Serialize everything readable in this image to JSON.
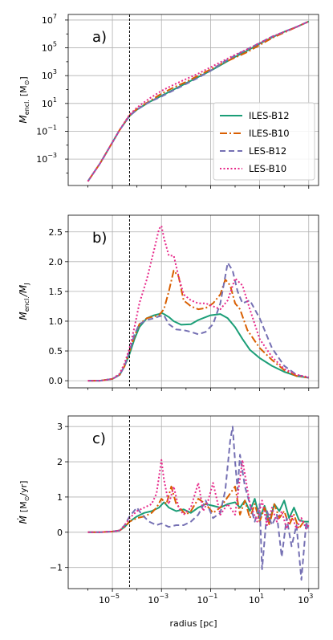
{
  "figure": {
    "xlabel": "radius [pc]",
    "vline_x_exp": -4.3
  },
  "legend": {
    "entries": [
      {
        "label": "ILES-B12",
        "color": "#1b9e77",
        "dash": ""
      },
      {
        "label": "ILES-B10",
        "color": "#d95f02",
        "dash": "9 3 2 3"
      },
      {
        "label": "LES-B12",
        "color": "#7570b3",
        "dash": "7 4"
      },
      {
        "label": "LES-B10",
        "color": "#e7298a",
        "dash": "2 2.5"
      }
    ]
  },
  "chart_data": [
    {
      "panel": "a)",
      "type": "line",
      "ylabel_main": "M",
      "ylabel_sub": "encl.",
      "ylabel_unit": "[M",
      "ylabel_unit_sym": "⊙",
      "ylabel_unit_end": "]",
      "xscale": "log",
      "yscale": "log",
      "xlim": [
        -6.8,
        3.4
      ],
      "ylim": [
        -4.9,
        7.4
      ],
      "xtick_labels": [],
      "ytick_exps": [
        -3,
        -1,
        1,
        3,
        5,
        7
      ],
      "ytick_labels": [
        "-3",
        "-1",
        "1",
        "3",
        "5",
        "7"
      ],
      "series": [
        {
          "name": "ILES-B12",
          "x_exp": [
            -6,
            -5.5,
            -5,
            -4.7,
            -4.3,
            -4,
            -3.5,
            -3,
            -2.5,
            -2,
            -1.5,
            -1,
            -0.5,
            0,
            0.5,
            1,
            1.5,
            2,
            2.5,
            3
          ],
          "y_exp": [
            -4.6,
            -3.3,
            -1.8,
            -0.9,
            0.1,
            0.55,
            1.1,
            1.55,
            2,
            2.45,
            2.9,
            3.35,
            3.85,
            4.35,
            4.8,
            5.3,
            5.75,
            6.15,
            6.5,
            6.9
          ]
        },
        {
          "name": "ILES-B10",
          "x_exp": [
            -6,
            -5.5,
            -5,
            -4.7,
            -4.3,
            -4,
            -3.5,
            -3,
            -2.5,
            -2,
            -1.5,
            -1,
            -0.5,
            0,
            0.5,
            1,
            1.5,
            2,
            2.5,
            3
          ],
          "y_exp": [
            -4.6,
            -3.3,
            -1.8,
            -0.9,
            0.15,
            0.6,
            1.15,
            1.7,
            2.15,
            2.55,
            3,
            3.45,
            3.9,
            4.3,
            4.7,
            5.2,
            5.7,
            6.1,
            6.5,
            6.9
          ]
        },
        {
          "name": "LES-B12",
          "x_exp": [
            -6,
            -5.5,
            -5,
            -4.7,
            -4.3,
            -4,
            -3.5,
            -3,
            -2.5,
            -2,
            -1.5,
            -1,
            -0.5,
            0,
            0.5,
            1,
            1.5,
            2,
            2.5,
            3
          ],
          "y_exp": [
            -4.6,
            -3.3,
            -1.8,
            -0.9,
            0.1,
            0.55,
            1.1,
            1.5,
            1.95,
            2.4,
            2.85,
            3.35,
            3.95,
            4.45,
            4.9,
            5.35,
            5.8,
            6.15,
            6.5,
            6.9
          ]
        },
        {
          "name": "LES-B10",
          "x_exp": [
            -6,
            -5.5,
            -5,
            -4.7,
            -4.3,
            -4,
            -3.5,
            -3,
            -2.5,
            -2,
            -1.5,
            -1,
            -0.5,
            0,
            0.5,
            1,
            1.5,
            2,
            2.5,
            3
          ],
          "y_exp": [
            -4.6,
            -3.3,
            -1.8,
            -0.9,
            0.2,
            0.7,
            1.35,
            1.9,
            2.35,
            2.75,
            3.15,
            3.6,
            4.05,
            4.5,
            4.9,
            5.35,
            5.8,
            6.15,
            6.5,
            6.9
          ]
        }
      ]
    },
    {
      "panel": "b)",
      "type": "line",
      "ylabel_main": "M",
      "ylabel_sub": "encl.",
      "ylabel_over": "/M",
      "ylabel_over_sub": "J",
      "xscale": "log",
      "yscale": "linear",
      "xlim": [
        -6.8,
        3.4
      ],
      "ylim": [
        -0.12,
        2.78
      ],
      "xtick_labels": [],
      "yticks": [
        0.0,
        0.5,
        1.0,
        1.5,
        2.0,
        2.5
      ],
      "ytick_labels": [
        "0.0",
        "0.5",
        "1.0",
        "1.5",
        "2.0",
        "2.5"
      ],
      "series": [
        {
          "name": "ILES-B12",
          "x_exp": [
            -6,
            -5.5,
            -5,
            -4.7,
            -4.5,
            -4.3,
            -4.1,
            -3.9,
            -3.6,
            -3.3,
            -3.1,
            -3,
            -2.9,
            -2.7,
            -2.5,
            -2.2,
            -1.8,
            -1.5,
            -1,
            -0.6,
            -0.3,
            0,
            0.3,
            0.6,
            1,
            1.5,
            2,
            2.5,
            3
          ],
          "y": [
            0,
            0,
            0.03,
            0.1,
            0.25,
            0.45,
            0.7,
            0.9,
            1.05,
            1.1,
            1.12,
            1.14,
            1.12,
            1.07,
            1.0,
            0.94,
            0.95,
            1.02,
            1.1,
            1.12,
            1.05,
            0.9,
            0.7,
            0.52,
            0.38,
            0.25,
            0.15,
            0.08,
            0.05
          ]
        },
        {
          "name": "ILES-B10",
          "x_exp": [
            -6,
            -5.5,
            -5,
            -4.7,
            -4.5,
            -4.3,
            -4.1,
            -3.9,
            -3.6,
            -3.3,
            -3.1,
            -2.9,
            -2.7,
            -2.5,
            -2.3,
            -2.1,
            -1.8,
            -1.5,
            -1.2,
            -0.9,
            -0.6,
            -0.4,
            -0.2,
            0,
            0.2,
            0.5,
            1,
            1.5,
            2,
            2.5,
            3
          ],
          "y": [
            0,
            0,
            0.03,
            0.1,
            0.25,
            0.5,
            0.75,
            0.95,
            1.05,
            1.08,
            1.1,
            1.2,
            1.5,
            1.85,
            1.75,
            1.35,
            1.25,
            1.2,
            1.22,
            1.3,
            1.45,
            1.7,
            1.6,
            1.3,
            1.2,
            0.85,
            0.55,
            0.35,
            0.18,
            0.08,
            0.05
          ]
        },
        {
          "name": "LES-B12",
          "x_exp": [
            -6,
            -5.5,
            -5,
            -4.7,
            -4.5,
            -4.3,
            -4.1,
            -3.9,
            -3.6,
            -3.3,
            -3.1,
            -2.9,
            -2.7,
            -2.4,
            -2.1,
            -1.8,
            -1.5,
            -1.2,
            -0.9,
            -0.6,
            -0.3,
            -0.1,
            0.1,
            0.3,
            0.6,
            1,
            1.5,
            2,
            2.5,
            3
          ],
          "y": [
            0,
            0,
            0.03,
            0.1,
            0.25,
            0.5,
            0.78,
            0.95,
            1.02,
            1.05,
            1.08,
            1.1,
            0.95,
            0.86,
            0.85,
            0.82,
            0.78,
            0.82,
            0.95,
            1.3,
            1.98,
            1.85,
            1.5,
            1.3,
            1.35,
            1.05,
            0.55,
            0.25,
            0.1,
            0.05
          ]
        },
        {
          "name": "LES-B10",
          "x_exp": [
            -6,
            -5.5,
            -5,
            -4.7,
            -4.5,
            -4.3,
            -4.1,
            -3.9,
            -3.6,
            -3.3,
            -3.1,
            -3,
            -2.9,
            -2.7,
            -2.5,
            -2.3,
            -2.1,
            -1.8,
            -1.5,
            -1.2,
            -0.9,
            -0.6,
            -0.3,
            0,
            0.3,
            0.6,
            1,
            1.5,
            2,
            2.5,
            3
          ],
          "y": [
            0,
            0,
            0.03,
            0.12,
            0.3,
            0.55,
            0.9,
            1.3,
            1.7,
            2.2,
            2.55,
            2.6,
            2.4,
            2.1,
            2.1,
            1.75,
            1.45,
            1.35,
            1.3,
            1.3,
            1.25,
            1.2,
            1.35,
            1.72,
            1.6,
            1.2,
            0.7,
            0.4,
            0.2,
            0.1,
            0.06
          ]
        }
      ]
    },
    {
      "panel": "c)",
      "type": "line",
      "ylabel_main": "Ṁ",
      "ylabel_unit": "[M",
      "ylabel_unit_sym": "⊙",
      "ylabel_unit_end": "/yr]",
      "xscale": "log",
      "yscale": "linear",
      "xlim": [
        -6.8,
        3.4
      ],
      "ylim": [
        -1.6,
        3.3
      ],
      "xtick_exps": [
        -5,
        -3,
        -1,
        1,
        3
      ],
      "xtick_labels": [
        "-5",
        "-3",
        "-1",
        "1",
        "3"
      ],
      "yticks": [
        -1,
        0,
        1,
        2,
        3
      ],
      "ytick_labels": [
        "−1",
        "0",
        "1",
        "2",
        "3"
      ],
      "series": [
        {
          "name": "ILES-B12",
          "x_exp": [
            -6,
            -5.5,
            -5,
            -4.7,
            -4.5,
            -4.3,
            -4,
            -3.7,
            -3.4,
            -3.1,
            -2.9,
            -2.7,
            -2.4,
            -2.1,
            -1.8,
            -1.5,
            -1.2,
            -0.9,
            -0.6,
            -0.3,
            0,
            0.2,
            0.4,
            0.6,
            0.8,
            1,
            1.2,
            1.4,
            1.6,
            1.8,
            2,
            2.2,
            2.4,
            2.6,
            2.8,
            3
          ],
          "y": [
            0,
            0,
            0.02,
            0.05,
            0.15,
            0.3,
            0.45,
            0.55,
            0.6,
            0.7,
            0.85,
            0.7,
            0.6,
            0.65,
            0.55,
            0.7,
            0.8,
            0.75,
            0.7,
            0.8,
            0.85,
            0.7,
            0.9,
            0.6,
            0.95,
            0.4,
            0.75,
            0.3,
            0.8,
            0.6,
            0.9,
            0.4,
            0.7,
            0.35,
            0.3,
            0.3
          ]
        },
        {
          "name": "ILES-B10",
          "x_exp": [
            -6,
            -5.5,
            -5,
            -4.7,
            -4.5,
            -4.3,
            -4,
            -3.7,
            -3.4,
            -3.2,
            -3,
            -2.8,
            -2.6,
            -2.4,
            -2.2,
            -2,
            -1.8,
            -1.5,
            -1.2,
            -0.9,
            -0.6,
            -0.3,
            0,
            0.2,
            0.4,
            0.6,
            0.8,
            1,
            1.2,
            1.4,
            1.6,
            1.8,
            2,
            2.2,
            2.4,
            2.6,
            2.8,
            3
          ],
          "y": [
            0,
            0,
            0.02,
            0.05,
            0.15,
            0.3,
            0.4,
            0.45,
            0.55,
            0.7,
            0.95,
            0.8,
            1.3,
            0.8,
            0.65,
            0.5,
            0.6,
            0.95,
            0.8,
            0.55,
            0.7,
            1.0,
            1.3,
            0.5,
            0.9,
            0.4,
            0.8,
            0.3,
            0.7,
            0.2,
            0.8,
            0.4,
            0.6,
            0.2,
            0.5,
            0.1,
            0.3,
            0.2
          ]
        },
        {
          "name": "LES-B12",
          "x_exp": [
            -6,
            -5.5,
            -5,
            -4.7,
            -4.5,
            -4.3,
            -4,
            -3.8,
            -3.5,
            -3.2,
            -3,
            -2.7,
            -2.4,
            -2.1,
            -1.8,
            -1.5,
            -1.2,
            -0.9,
            -0.6,
            -0.4,
            -0.2,
            -0.1,
            0,
            0.1,
            0.2,
            0.4,
            0.6,
            0.8,
            1,
            1.1,
            1.3,
            1.5,
            1.7,
            1.9,
            2.1,
            2.3,
            2.5,
            2.7,
            2.9,
            3
          ],
          "y": [
            0,
            0,
            0.02,
            0.05,
            0.2,
            0.45,
            0.7,
            0.5,
            0.3,
            0.2,
            0.25,
            0.15,
            0.2,
            0.2,
            0.3,
            0.5,
            0.9,
            0.4,
            0.55,
            1.2,
            2.6,
            3.0,
            2.0,
            1.2,
            2.2,
            1.3,
            0.8,
            0.3,
            0.8,
            -1.05,
            0.6,
            0.2,
            0.5,
            -0.7,
            0.4,
            -0.4,
            0.2,
            -1.35,
            0.3,
            0.0
          ]
        },
        {
          "name": "LES-B10",
          "x_exp": [
            -6,
            -5.5,
            -5,
            -4.7,
            -4.5,
            -4.3,
            -4,
            -3.7,
            -3.4,
            -3.2,
            -3,
            -2.9,
            -2.7,
            -2.5,
            -2.3,
            -2.1,
            -1.8,
            -1.5,
            -1.3,
            -1.1,
            -0.9,
            -0.6,
            -0.3,
            0,
            0.3,
            0.6,
            0.9,
            1.1,
            1.3,
            1.5,
            1.7,
            1.9,
            2.1,
            2.3,
            2.5,
            2.7,
            2.9,
            3
          ],
          "y": [
            0,
            0,
            0.02,
            0.05,
            0.2,
            0.4,
            0.6,
            0.7,
            0.8,
            1.1,
            2.05,
            1.5,
            0.8,
            1.3,
            0.7,
            0.5,
            0.7,
            1.4,
            0.6,
            0.9,
            1.4,
            0.5,
            0.8,
            0.5,
            2.05,
            0.8,
            0.3,
            0.9,
            0.2,
            0.7,
            0.3,
            0.6,
            0.1,
            0.5,
            0.1,
            0.4,
            0.1,
            0.2
          ]
        }
      ]
    }
  ]
}
